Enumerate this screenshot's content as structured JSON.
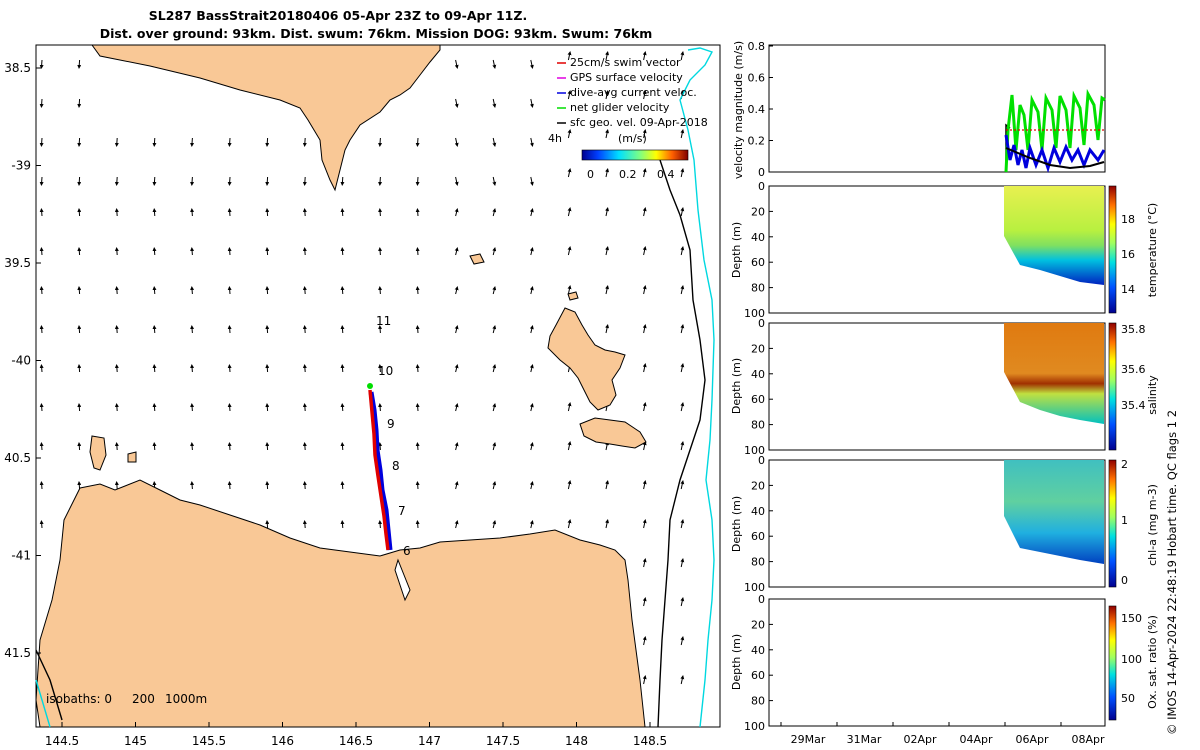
{
  "title": {
    "line1": "SL287 BassStrait20180406 05-Apr 23Z to 09-Apr 11Z.",
    "line2": "Dist. over ground: 93km. Dist. swum: 76km. Mission DOG: 93km. Swum: 76km"
  },
  "map": {
    "lon_ticks": [
      "144.5",
      "145",
      "145.5",
      "146",
      "146.5",
      "147",
      "147.5",
      "148",
      "148.5"
    ],
    "lat_ticks": [
      "38.5",
      "-39",
      "39.5",
      "-40",
      "40.5",
      "-41",
      "41.5"
    ],
    "legend": [
      {
        "label": "25cm/s swim vector",
        "color": "#e00000"
      },
      {
        "label": "GPS surface velocity",
        "color": "#e000e0"
      },
      {
        "label": "dive-avg current veloc.",
        "color": "#0000dd"
      },
      {
        "label": "net glider velocity",
        "color": "#00dd00"
      },
      {
        "label": "sfc geo. vel. 09-Apr-2018",
        "color": "#000000"
      }
    ],
    "legend_4h": "4h",
    "colorbar_unit": "(m/s)",
    "colorbar_ticks": [
      "0",
      "0.2",
      "0.4"
    ],
    "day_labels": [
      "11",
      "10",
      "9",
      "8",
      "7",
      "6"
    ],
    "isobaths_label": "isobaths: 0",
    "isobaths_200": "200",
    "isobaths_1000": "1000m",
    "colors": {
      "land": "#f9c896",
      "isobath_200": "#000000",
      "isobath_1000": "#00e0e0",
      "track": "#e00000"
    }
  },
  "panels": {
    "velocity": {
      "ylabel": "velocity magnitude (m/s)",
      "yticks": [
        "0",
        "0.2",
        "0.4",
        "0.6",
        "0.8"
      ]
    },
    "temperature": {
      "ylabel": "Depth (m)",
      "cbar_label": "temperature (°C)",
      "cbar_ticks": [
        "14",
        "16",
        "18"
      ]
    },
    "salinity": {
      "ylabel": "Depth (m)",
      "cbar_label": "salinity",
      "cbar_ticks": [
        "35.4",
        "35.6",
        "35.8"
      ],
      "qc_label": "QC flags 1  2"
    },
    "chla": {
      "ylabel": "Depth (m)",
      "cbar_label": "chl-a (mg m-3)",
      "cbar_ticks": [
        "0",
        "1",
        "2"
      ]
    },
    "oxygen": {
      "ylabel": "Depth (m)",
      "cbar_label": "Ox. sat. ratio (%)",
      "cbar_ticks": [
        "50",
        "100",
        "150"
      ]
    },
    "depth_ticks": [
      "0",
      "20",
      "40",
      "60",
      "80",
      "100"
    ],
    "date_ticks": [
      "29Mar",
      "31Mar",
      "02Apr",
      "04Apr",
      "06Apr",
      "08Apr"
    ]
  },
  "credit": "© IMOS 14-Apr-2024 22:48:19 Hobart time."
}
